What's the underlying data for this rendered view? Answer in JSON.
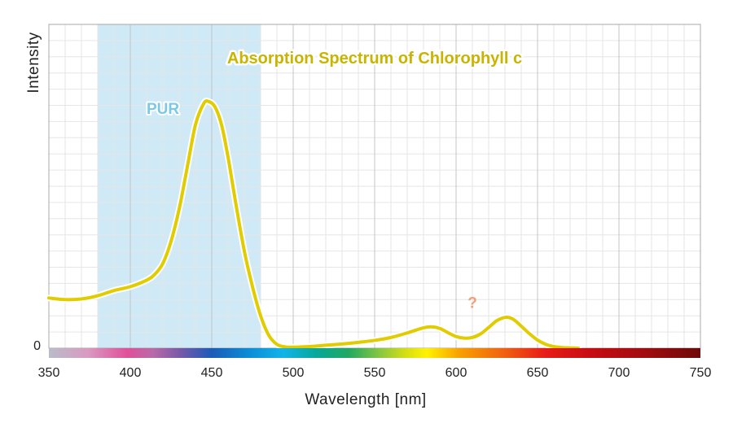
{
  "chart_data": {
    "type": "line",
    "title": "Absorption Spectrum of Chlorophyll c",
    "xlabel": "Wavelength [nm]",
    "ylabel": "Intensity",
    "xlim": [
      350,
      750
    ],
    "ylim": [
      0,
      1
    ],
    "x_ticks": [
      350,
      400,
      450,
      500,
      550,
      600,
      650,
      700,
      750
    ],
    "x_tick_labels": [
      "350",
      "400",
      "450",
      "500",
      "550",
      "600",
      "650",
      "700",
      "750"
    ],
    "y_tick_labels": [
      "0"
    ],
    "grid": true,
    "series": [
      {
        "color": "#e0cc00",
        "x": [
          350,
          360,
          370,
          380,
          390,
          400,
          410,
          415,
          420,
          425,
          430,
          435,
          440,
          445,
          448,
          452,
          456,
          460,
          465,
          470,
          475,
          480,
          485,
          490,
          495,
          500,
          510,
          520,
          530,
          540,
          550,
          560,
          570,
          580,
          585,
          590,
          595,
          600,
          605,
          610,
          615,
          620,
          625,
          630,
          633,
          636,
          640,
          645,
          650,
          655,
          660,
          665,
          670,
          675
        ],
        "y": [
          0.155,
          0.15,
          0.152,
          0.162,
          0.178,
          0.19,
          0.21,
          0.228,
          0.262,
          0.33,
          0.43,
          0.56,
          0.69,
          0.755,
          0.762,
          0.745,
          0.69,
          0.59,
          0.44,
          0.3,
          0.19,
          0.1,
          0.04,
          0.012,
          0.004,
          0.003,
          0.005,
          0.009,
          0.013,
          0.018,
          0.024,
          0.033,
          0.047,
          0.063,
          0.066,
          0.061,
          0.048,
          0.036,
          0.031,
          0.033,
          0.044,
          0.064,
          0.085,
          0.095,
          0.094,
          0.086,
          0.068,
          0.045,
          0.025,
          0.012,
          0.005,
          0.002,
          0.001,
          0.0
        ]
      }
    ],
    "shaded_band": {
      "label": "PUR",
      "x_start": 380,
      "x_end": 480,
      "color": "#cfe9f7",
      "label_color": "#7cc8e8"
    },
    "annotations": [
      {
        "text": "?",
        "x": 610,
        "y": 0.125,
        "color": "#f0a07a"
      }
    ],
    "colors": {
      "title": "#c9b400",
      "curve": "#e0cc00"
    },
    "spectrum_bar": true
  }
}
